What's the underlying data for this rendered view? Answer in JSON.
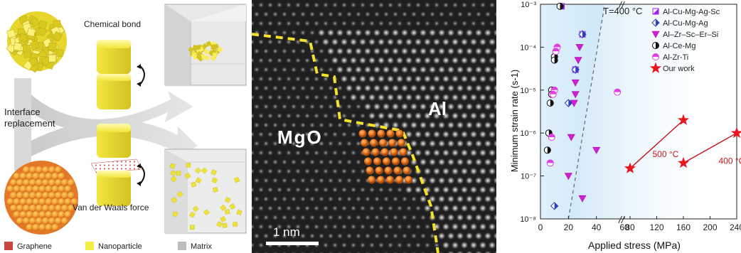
{
  "panel_a": {
    "chemical_bond": "Chemical bond",
    "interface_line1": "Interface",
    "interface_line2": "replacement",
    "vdw_force": "Van der Waals force",
    "legend": [
      {
        "label": "Graphene",
        "color": "#c8463f"
      },
      {
        "label": "Nanoparticle",
        "color": "#f3ec45"
      },
      {
        "label": "Matrix",
        "color": "#bdbdbd"
      }
    ]
  },
  "panel_b": {
    "mgo_label": "MgO",
    "al_label": "Al",
    "scale_bar": "1 nm"
  },
  "chart_data": {
    "type": "scatter",
    "xlabel": "Applied stress (MPa)",
    "ylabel": "Minimum strain rate (s-1)",
    "annotation_T": "T=400 °C",
    "x_ticks": [
      "0",
      "20",
      "40",
      "60",
      "80",
      "120",
      "160",
      "200",
      "240"
    ],
    "y_ticks": [
      "10⁻⁸",
      "10⁻⁷",
      "10⁻⁶",
      "10⁻⁵",
      "10⁻⁴",
      "10⁻³"
    ],
    "y_log_range": [
      -8,
      -3
    ],
    "axis_break": "//",
    "series": [
      {
        "name": "Al-Cu-Mg-Ag-Sc",
        "marker": "half-square",
        "color": "#a020f0",
        "points": [
          [
            15,
            0.0009
          ],
          [
            30,
            0.0002
          ],
          [
            25,
            3e-05
          ]
        ]
      },
      {
        "name": "Al-Cu-Mg-Ag",
        "marker": "half-diamond",
        "color": "#2a3fbf",
        "points": [
          [
            30,
            0.0002
          ],
          [
            25,
            3e-05
          ],
          [
            20,
            5e-06
          ],
          [
            10,
            2e-08
          ]
        ]
      },
      {
        "name": "Al–Zr–Sc–Er–Si",
        "marker": "triangle-down",
        "color": "#d21fd2",
        "points": [
          [
            28,
            0.0001
          ],
          [
            27,
            5e-05
          ],
          [
            25,
            1.5e-05
          ],
          [
            25,
            8e-06
          ],
          [
            24,
            5e-06
          ],
          [
            22,
            8e-07
          ],
          [
            20,
            1e-07
          ],
          [
            30,
            3e-08
          ],
          [
            40,
            4e-07
          ]
        ]
      },
      {
        "name": "Al-Ce-Mg",
        "marker": "half-circle",
        "color": "#111111",
        "points": [
          [
            14,
            0.0009
          ],
          [
            10,
            6e-05
          ],
          [
            10,
            5e-05
          ],
          [
            8,
            1e-05
          ],
          [
            8,
            8e-06
          ],
          [
            7,
            5e-06
          ],
          [
            6,
            1e-06
          ],
          [
            5,
            4e-07
          ]
        ]
      },
      {
        "name": "Al-Zr-Ti",
        "marker": "half-circle-pink",
        "color": "#e040e0",
        "points": [
          [
            12,
            0.0001
          ],
          [
            11,
            8e-05
          ],
          [
            10,
            1e-05
          ],
          [
            9,
            8e-06
          ],
          [
            8,
            8e-07
          ],
          [
            7,
            2e-07
          ],
          [
            55,
            9e-06
          ]
        ]
      },
      {
        "name": "Our work",
        "marker": "star",
        "color": "#e8141e",
        "points": [
          [
            160,
            2e-06
          ],
          [
            80,
            1.5e-07
          ],
          [
            160,
            2e-07
          ],
          [
            240,
            1e-06
          ]
        ]
      }
    ],
    "lines": [
      {
        "label": "500 °C",
        "from": [
          80,
          1.5e-07
        ],
        "to": [
          160,
          2e-06
        ]
      },
      {
        "label": "400 °C",
        "from": [
          160,
          2e-07
        ],
        "to": [
          240,
          1e-06
        ]
      }
    ]
  }
}
